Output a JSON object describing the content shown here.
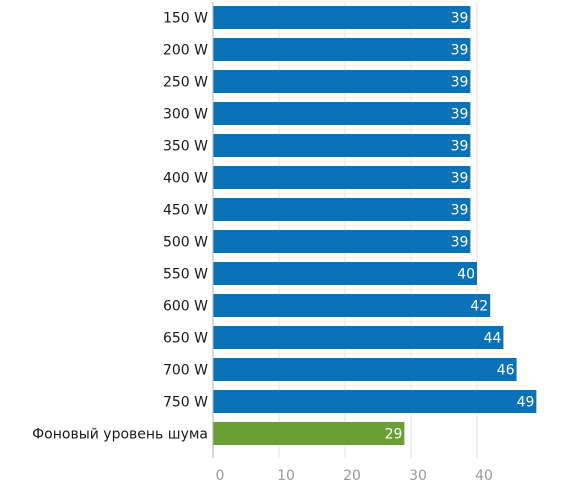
{
  "chart_data": {
    "type": "bar",
    "orientation": "horizontal",
    "categories": [
      "150 W",
      "200 W",
      "250 W",
      "300 W",
      "350 W",
      "400 W",
      "450 W",
      "500 W",
      "550 W",
      "600 W",
      "650 W",
      "700 W",
      "750 W",
      "Фоновый уровень шума"
    ],
    "values": [
      39,
      39,
      39,
      39,
      39,
      39,
      39,
      39,
      40,
      42,
      44,
      46,
      49,
      29
    ],
    "bar_colors": [
      "#0a72b8",
      "#0a72b8",
      "#0a72b8",
      "#0a72b8",
      "#0a72b8",
      "#0a72b8",
      "#0a72b8",
      "#0a72b8",
      "#0a72b8",
      "#0a72b8",
      "#0a72b8",
      "#0a72b8",
      "#0a72b8",
      "#6aa033"
    ],
    "xticks": [
      0,
      10,
      20,
      30,
      40
    ],
    "xlim": [
      0,
      49
    ],
    "grid": "vertical",
    "title": "",
    "xlabel": "",
    "ylabel": ""
  },
  "colors": {
    "bar": "#0a72b8",
    "highlight_bar": "#6aa033",
    "grid": "#e3e3e3",
    "axis": "#b0b0b0"
  }
}
